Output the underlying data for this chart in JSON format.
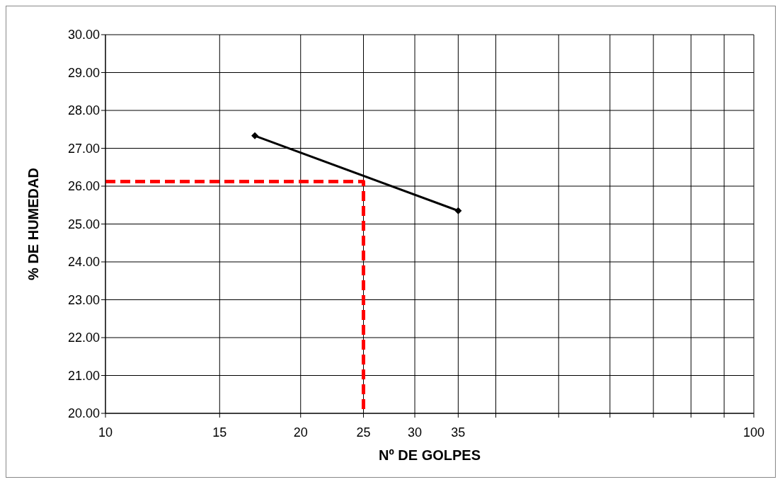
{
  "chart_data": {
    "type": "line",
    "xlabel": "Nº DE GOLPES",
    "ylabel": "% DE HUMEDAD",
    "log": "x",
    "grid": true,
    "xlim": [
      10,
      100
    ],
    "xticks": [
      10,
      15,
      20,
      25,
      30,
      35,
      {
        "value": 40,
        "label": null
      },
      {
        "value": 50,
        "label": null
      },
      {
        "value": 60,
        "label": null
      },
      {
        "value": 70,
        "label": null
      },
      {
        "value": 80,
        "label": null
      },
      {
        "value": 90,
        "label": null
      },
      100
    ],
    "ylim": [
      20,
      30
    ],
    "yticks": [
      {
        "value": 20,
        "label": "20.00"
      },
      {
        "value": 21,
        "label": "21.00"
      },
      {
        "value": 22,
        "label": "22.00"
      },
      {
        "value": 23,
        "label": "23.00"
      },
      {
        "value": 24,
        "label": "24.00"
      },
      {
        "value": 25,
        "label": "25.00"
      },
      {
        "value": 26,
        "label": "26.00"
      },
      {
        "value": 27,
        "label": "27.00"
      },
      {
        "value": 28,
        "label": "28.00"
      },
      {
        "value": 29,
        "label": "29.00"
      },
      {
        "value": 30,
        "label": "30.00"
      }
    ],
    "series": [
      {
        "color": "#000000",
        "x": [
          17,
          35
        ],
        "values": [
          27.33,
          25.35
        ],
        "marker": "diamond",
        "line_style": "solid"
      },
      {
        "color": "#ff0000",
        "x": [
          10,
          25,
          25
        ],
        "values": [
          26.12,
          26.12,
          20
        ],
        "marker": "none",
        "line_style": "dashed"
      }
    ]
  }
}
